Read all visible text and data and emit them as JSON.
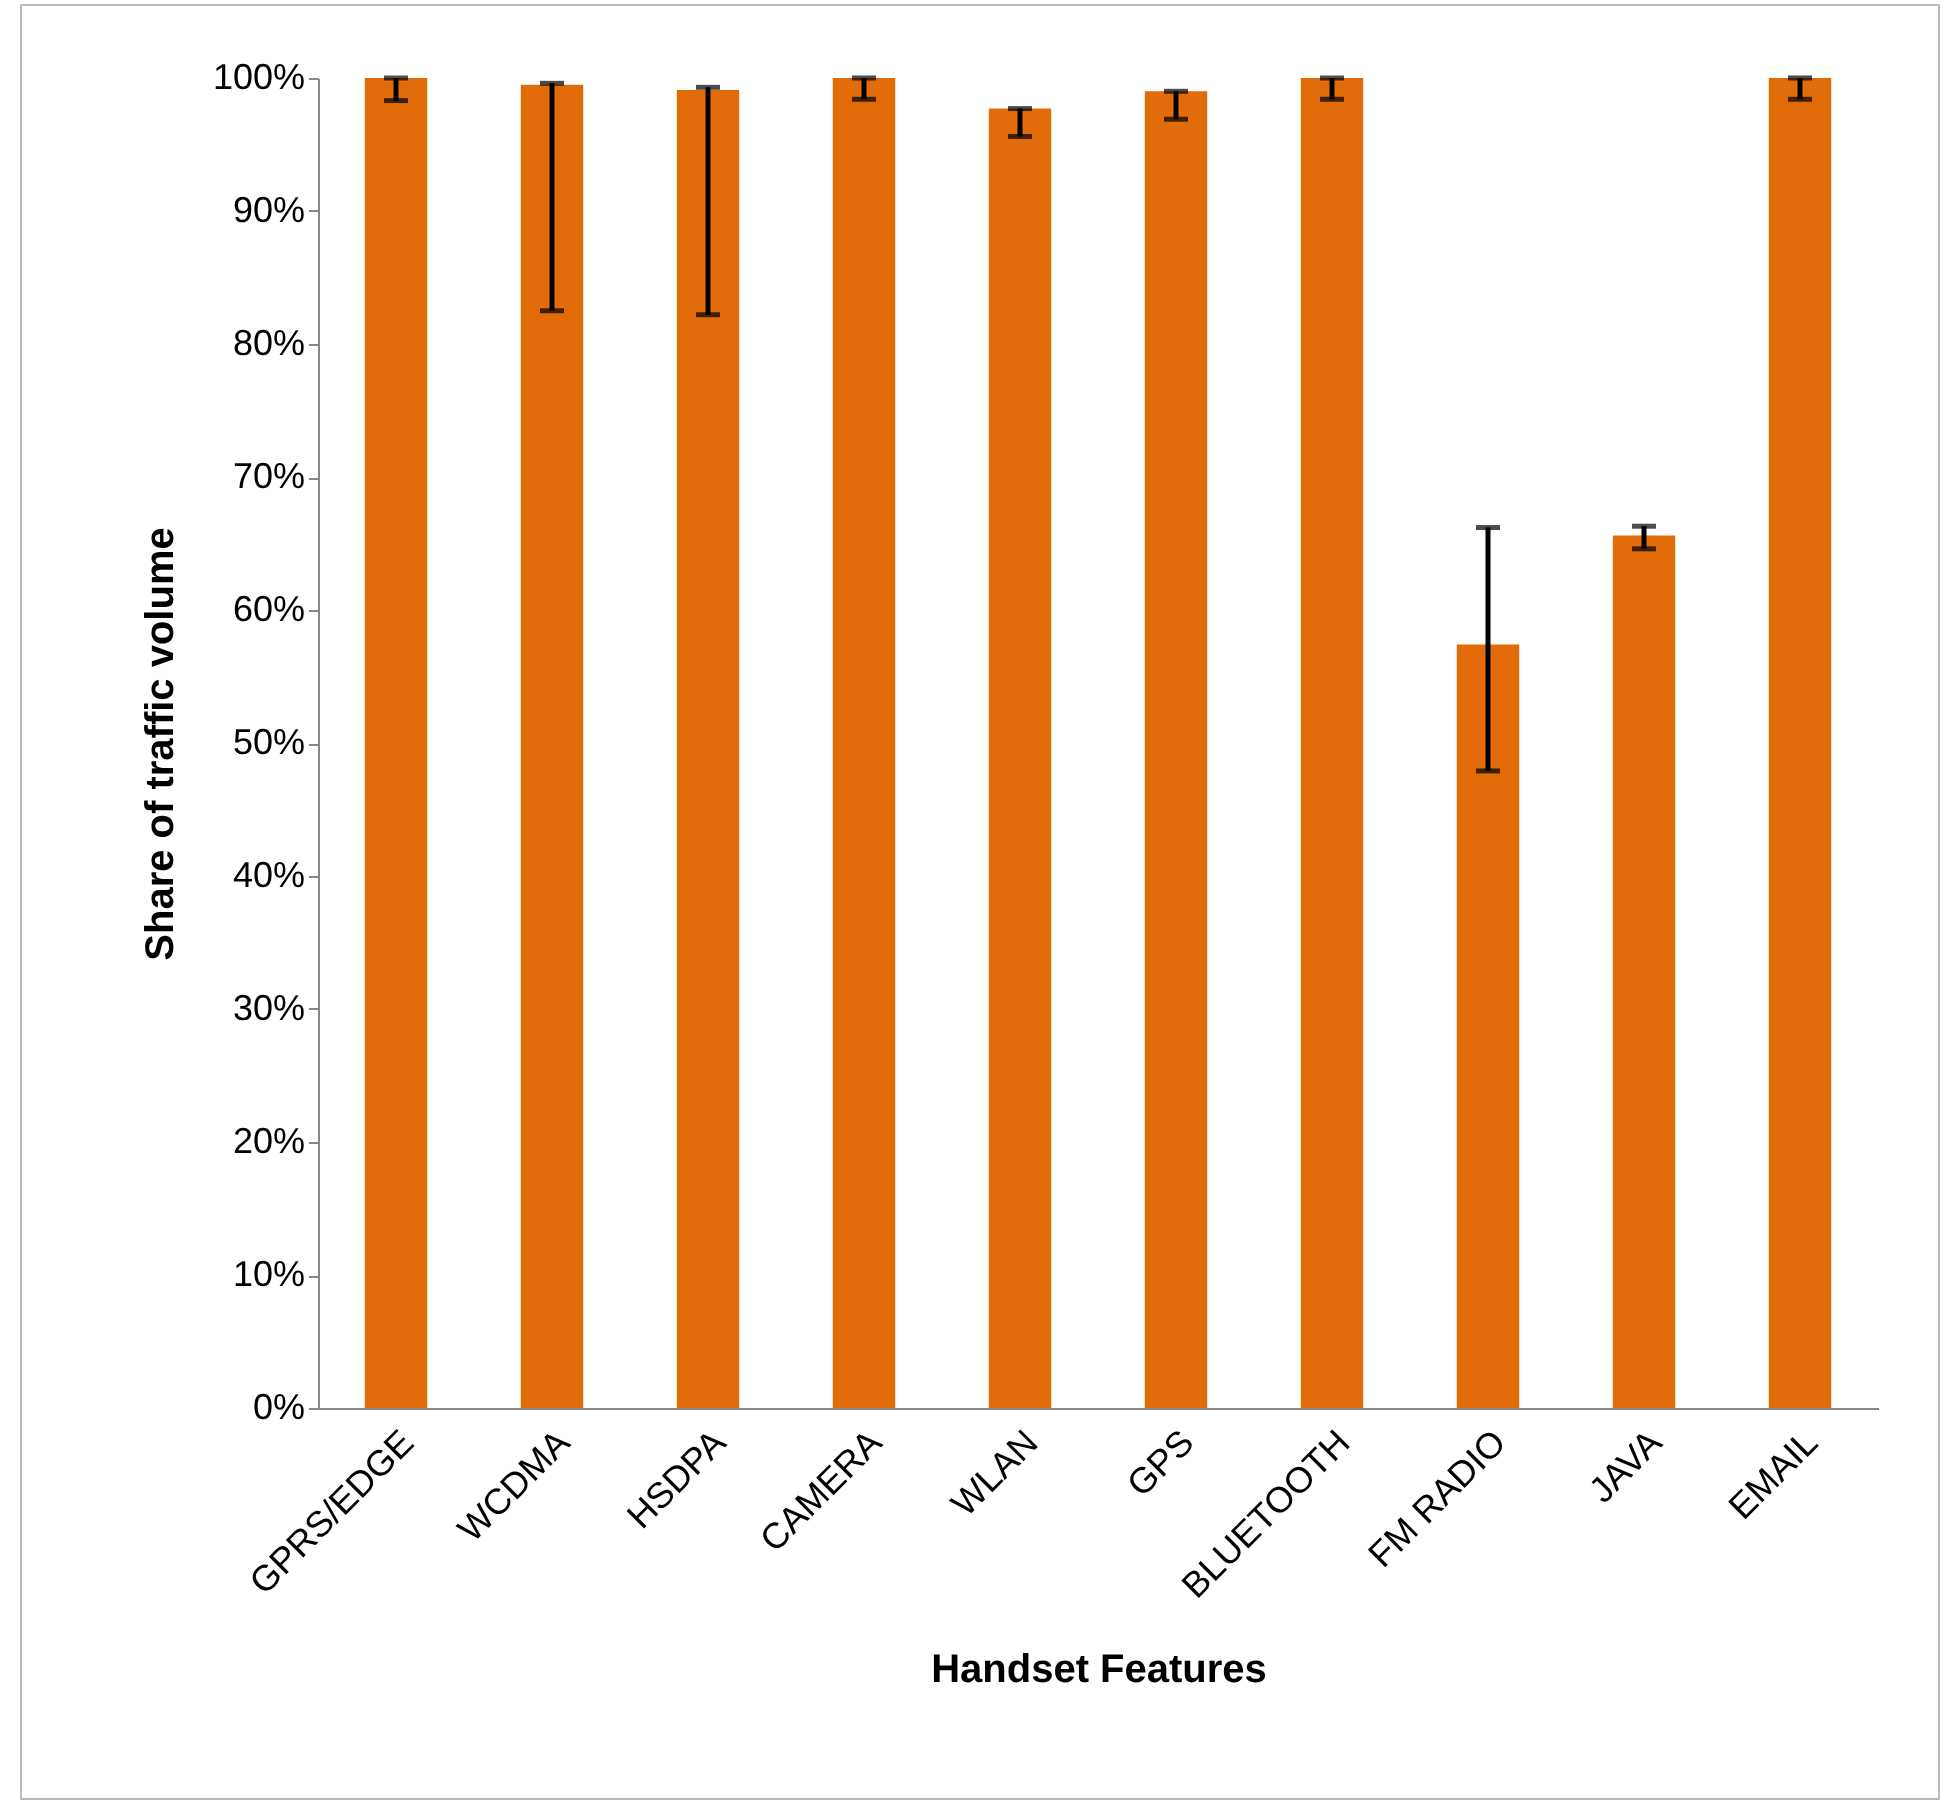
{
  "chart_data": {
    "type": "bar",
    "xlabel": "Handset Features",
    "ylabel": "Share of traffic volume",
    "categories": [
      "GPRS/EDGE",
      "WCDMA",
      "HSDPA",
      "CAMERA",
      "WLAN",
      "GPS",
      "BLUETOOTH",
      "FM RADIO",
      "JAVA",
      "EMAIL"
    ],
    "values": [
      100,
      99.5,
      99.1,
      100,
      97.7,
      99.0,
      100,
      57.4,
      65.6,
      100
    ],
    "errors": [
      [
        98.3,
        100
      ],
      [
        82.5,
        99.6
      ],
      [
        82.2,
        99.3
      ],
      [
        98.4,
        100
      ],
      [
        95.6,
        97.7
      ],
      [
        96.9,
        99.0
      ],
      [
        98.4,
        100
      ],
      [
        47.9,
        66.2
      ],
      [
        64.6,
        66.3
      ],
      [
        98.4,
        100
      ]
    ],
    "color": "#e36c0a",
    "ylim": [
      0,
      100
    ],
    "yticks": [
      {
        "value": 0,
        "label": "0%"
      },
      {
        "value": 10,
        "label": "10%"
      },
      {
        "value": 20,
        "label": "20%"
      },
      {
        "value": 30,
        "label": "30%"
      },
      {
        "value": 40,
        "label": "40%"
      },
      {
        "value": 50,
        "label": "50%"
      },
      {
        "value": 60,
        "label": "60%"
      },
      {
        "value": 70,
        "label": "70%"
      },
      {
        "value": 80,
        "label": "80%"
      },
      {
        "value": 90,
        "label": "90%"
      },
      {
        "value": 100,
        "label": "100%"
      }
    ]
  }
}
